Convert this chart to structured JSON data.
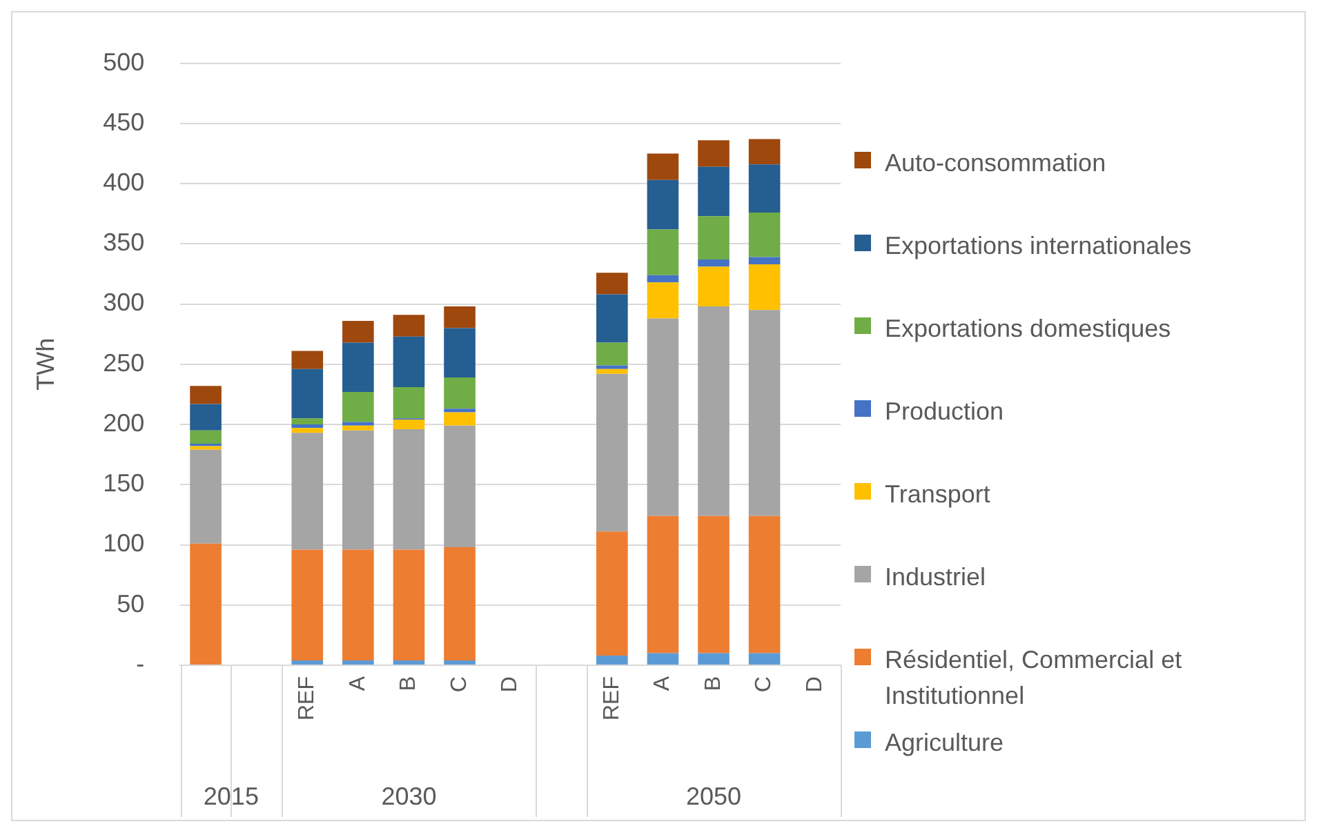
{
  "chart_data": {
    "type": "bar",
    "stacked": true,
    "ylabel": "TWh",
    "categories": [
      null,
      null,
      "REF",
      "A",
      "B",
      "C",
      "D",
      null,
      "REF",
      "A",
      "B",
      "C",
      "D"
    ],
    "annotations": [
      "2015",
      "2030",
      "2050"
    ],
    "ylim": [
      0,
      500
    ],
    "yticks": [
      {
        "value": 0,
        "label": "-"
      },
      50,
      100,
      150,
      200,
      250,
      300,
      350,
      400,
      450,
      500
    ],
    "grid": "y",
    "legend": "right",
    "series": [
      {
        "name": "Agriculture",
        "color": "#5b9bd5",
        "values": [
          0,
          null,
          4,
          4,
          4,
          4,
          null,
          null,
          8,
          10,
          10,
          10,
          null
        ]
      },
      {
        "name": "Résidentiel, Commercial et Institutionnel",
        "color": "#ed7d31",
        "values": [
          101,
          null,
          92,
          92,
          92,
          94,
          null,
          null,
          103,
          114,
          114,
          114,
          null
        ]
      },
      {
        "name": "Industriel",
        "color": "#a5a5a5",
        "values": [
          78,
          null,
          97,
          99,
          100,
          101,
          null,
          null,
          131,
          164,
          174,
          171,
          null
        ]
      },
      {
        "name": "Transport",
        "color": "#ffc000",
        "values": [
          3,
          null,
          4,
          4,
          8,
          11,
          null,
          null,
          4,
          30,
          33,
          38,
          null
        ]
      },
      {
        "name": "Production",
        "color": "#4472c4",
        "values": [
          2,
          null,
          3,
          3,
          1,
          3,
          null,
          null,
          3,
          6,
          6,
          6,
          null
        ]
      },
      {
        "name": "Exportations domestiques",
        "color": "#70ad47",
        "values": [
          11,
          null,
          5,
          25,
          26,
          26,
          null,
          null,
          19,
          38,
          36,
          37,
          null
        ]
      },
      {
        "name": "Exportations internationales",
        "color": "#255e91",
        "values": [
          22,
          null,
          41,
          41,
          42,
          41,
          null,
          null,
          40,
          41,
          41,
          40,
          null
        ]
      },
      {
        "name": "Auto-consommation",
        "color": "#9e480e",
        "values": [
          15,
          null,
          15,
          18,
          18,
          18,
          null,
          null,
          18,
          22,
          22,
          21,
          null
        ]
      }
    ]
  }
}
